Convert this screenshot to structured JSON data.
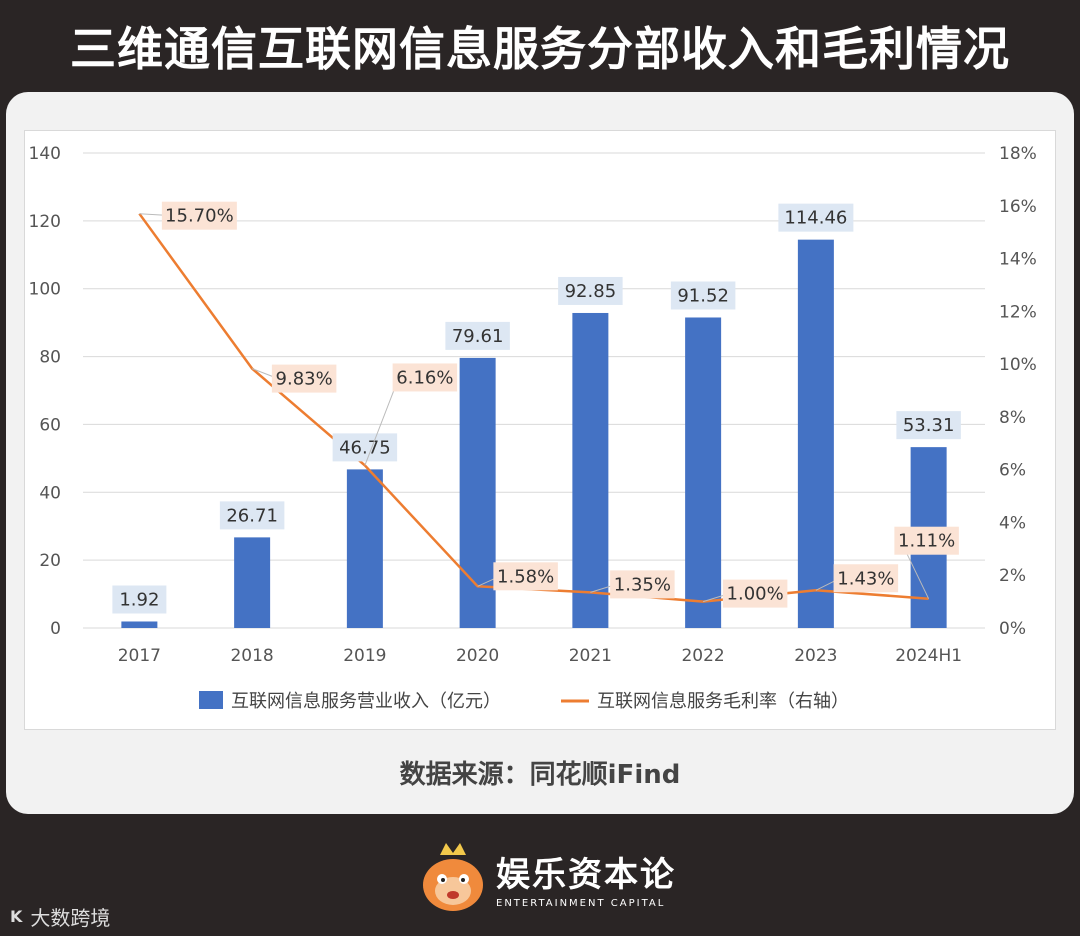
{
  "header": {
    "title": "三维通信互联网信息服务分部收入和毛利情况"
  },
  "source": "数据来源：同花顺iFind",
  "footer": {
    "brand_cn": "娱乐资本论",
    "brand_en": "ENTERTAINMENT CAPITAL",
    "corner_logo": "K",
    "corner_text": "大数跨境"
  },
  "colors": {
    "bar": "#4472c4",
    "line": "#ed7d31",
    "bar_label_bg": "#dde7f3",
    "line_label_bg": "#fbe3d5"
  },
  "chart_data": {
    "type": "bar",
    "categories": [
      "2017",
      "2018",
      "2019",
      "2020",
      "2021",
      "2022",
      "2023",
      "2024H1"
    ],
    "series": [
      {
        "name": "互联网信息服务营业收入（亿元）",
        "type": "bar",
        "axis": "left",
        "values": [
          1.92,
          26.71,
          46.75,
          79.61,
          92.85,
          91.52,
          114.46,
          53.31
        ],
        "labels": [
          "1.92",
          "26.71",
          "46.75",
          "79.61",
          "92.85",
          "91.52",
          "114.46",
          "53.31"
        ]
      },
      {
        "name": "互联网信息服务毛利率（右轴）",
        "type": "line",
        "axis": "right",
        "values": [
          15.7,
          9.83,
          6.16,
          1.58,
          1.35,
          1.0,
          1.43,
          1.11
        ],
        "labels": [
          "15.70%",
          "9.83%",
          "6.16%",
          "1.58%",
          "1.35%",
          "1.00%",
          "1.43%",
          "1.11%"
        ]
      }
    ],
    "left_axis": {
      "ylim": [
        0,
        140
      ],
      "ticks": [
        "0",
        "20",
        "40",
        "60",
        "80",
        "100",
        "120",
        "140"
      ]
    },
    "right_axis": {
      "ylim": [
        0,
        18
      ],
      "ticks": [
        "0%",
        "2%",
        "4%",
        "6%",
        "8%",
        "10%",
        "12%",
        "14%",
        "16%",
        "18%"
      ]
    },
    "grid": true,
    "legend_position": "bottom"
  }
}
